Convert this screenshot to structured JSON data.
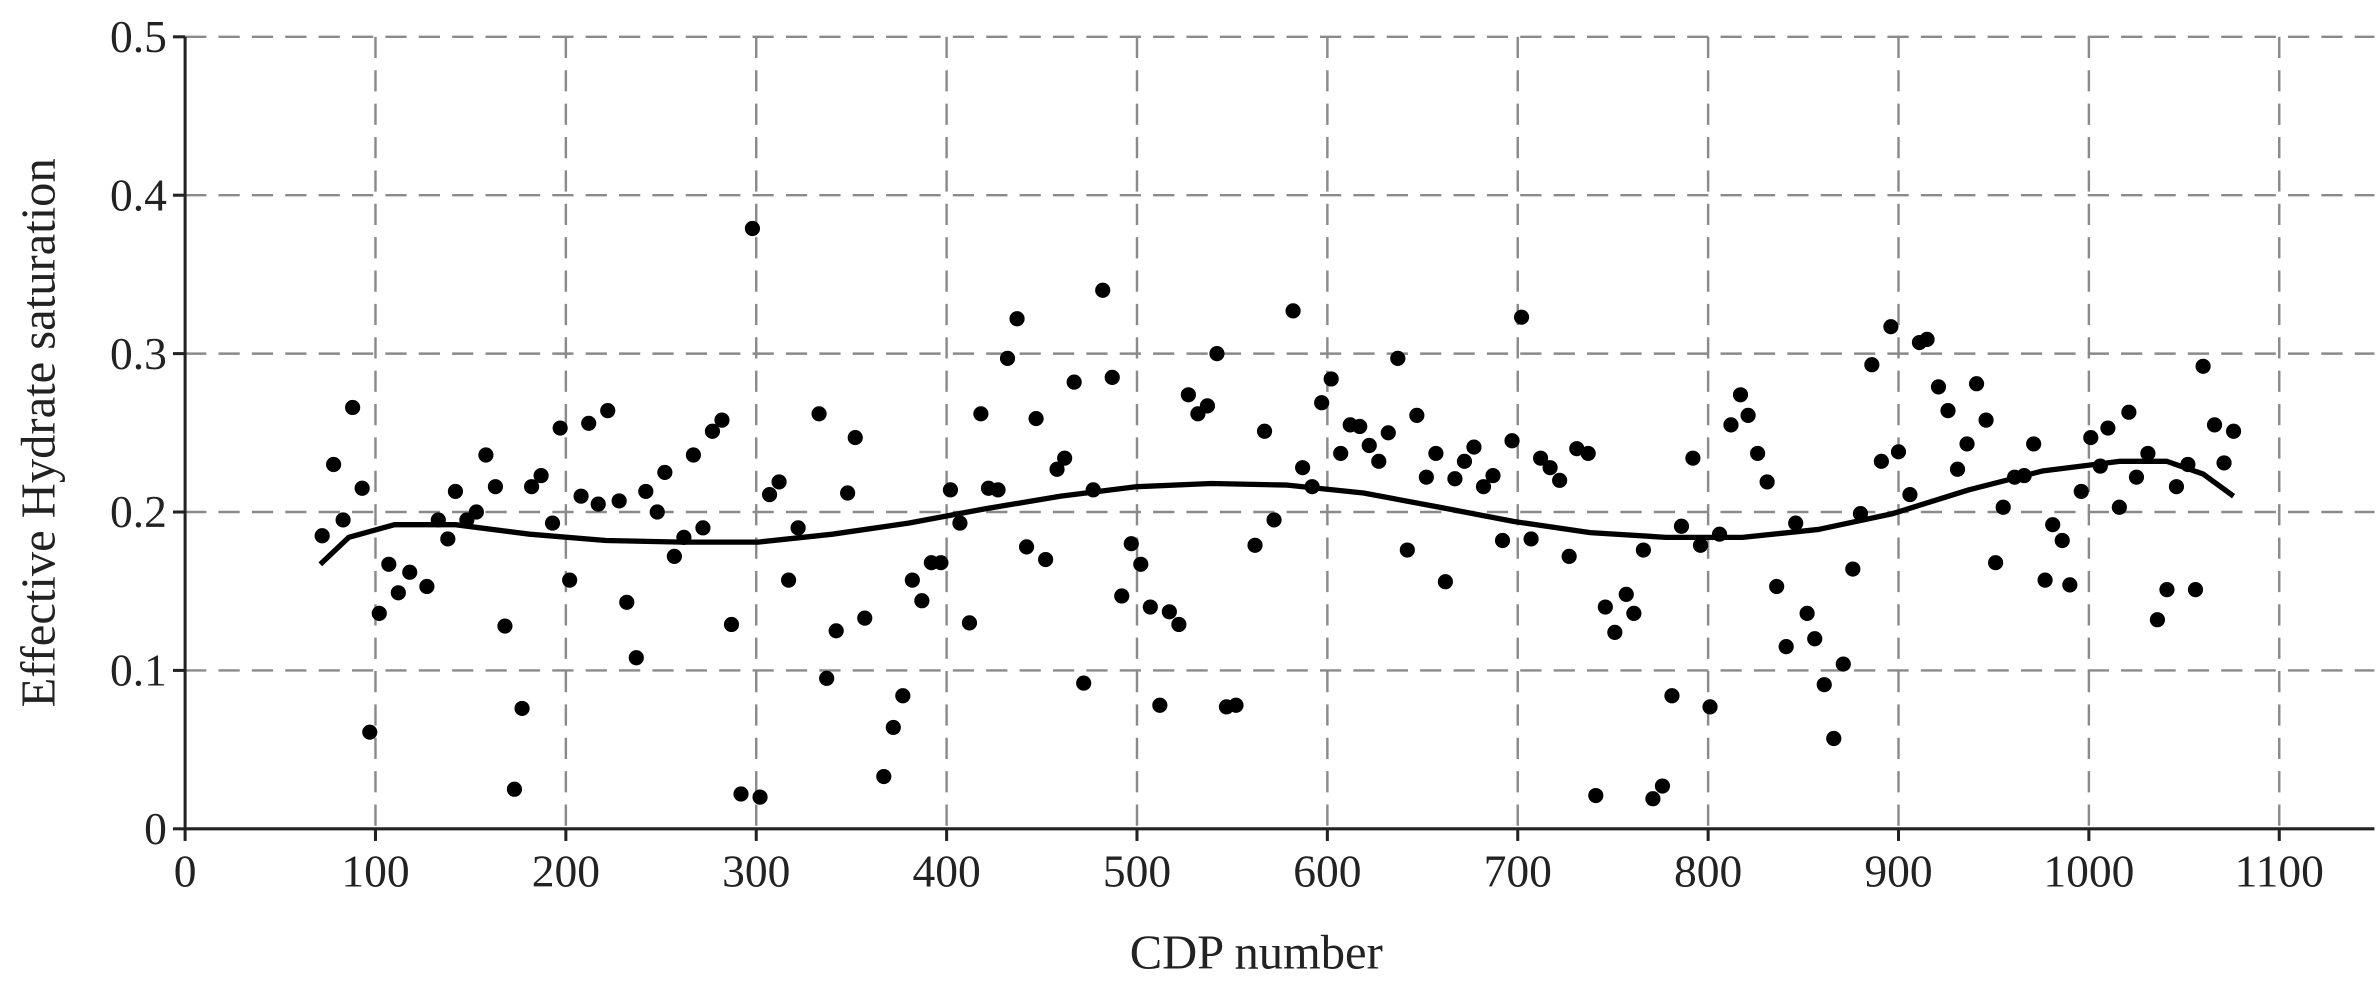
{
  "chart_data": {
    "type": "scatter",
    "xlabel": "CDP number",
    "ylabel": "Effective Hydrate saturation",
    "xlim": [
      0,
      1150
    ],
    "ylim": [
      0,
      0.5
    ],
    "xticks": [
      0,
      100,
      200,
      300,
      400,
      500,
      600,
      700,
      800,
      900,
      1000,
      1100
    ],
    "yticks": [
      0,
      0.1,
      0.2,
      0.3,
      0.4,
      0.5
    ],
    "grid": true,
    "series": [
      {
        "color": "#000000",
        "x": [
          72,
          78,
          83,
          88,
          93,
          97,
          102,
          107,
          112,
          118,
          127,
          133,
          138,
          142,
          148,
          153,
          158,
          163,
          168,
          173,
          177,
          182,
          187,
          193,
          197,
          202,
          208,
          212,
          217,
          222,
          228,
          232,
          237,
          242,
          248,
          252,
          257,
          262,
          267,
          272,
          277,
          282,
          287,
          292,
          298,
          302,
          307,
          312,
          317,
          322,
          333,
          337,
          342,
          348,
          352,
          357,
          367,
          372,
          377,
          382,
          387,
          392,
          397,
          402,
          407,
          412,
          418,
          422,
          427,
          432,
          437,
          442,
          447,
          452,
          458,
          462,
          467,
          472,
          477,
          482,
          487,
          492,
          497,
          502,
          507,
          512,
          517,
          522,
          527,
          532,
          537,
          542,
          547,
          552,
          562,
          567,
          572,
          582,
          587,
          592,
          597,
          602,
          607,
          612,
          617,
          622,
          627,
          632,
          637,
          642,
          647,
          652,
          657,
          662,
          667,
          672,
          677,
          682,
          687,
          692,
          697,
          702,
          707,
          712,
          717,
          722,
          727,
          731,
          737,
          741,
          746,
          751,
          757,
          761,
          766,
          771,
          776,
          781,
          786,
          792,
          796,
          801,
          806,
          812,
          817,
          821,
          826,
          831,
          836,
          841,
          846,
          852,
          856,
          861,
          866,
          871,
          876,
          880,
          886,
          891,
          896,
          900,
          906,
          911,
          915,
          921,
          926,
          931,
          936,
          941,
          946,
          951,
          955,
          961,
          966,
          971,
          977,
          981,
          986,
          990,
          996,
          1001,
          1006,
          1010,
          1016,
          1021,
          1025,
          1031,
          1036,
          1041,
          1046,
          1052,
          1056,
          1060,
          1066,
          1071,
          1076
        ],
        "y": [
          0.185,
          0.23,
          0.195,
          0.266,
          0.215,
          0.061,
          0.136,
          0.167,
          0.149,
          0.162,
          0.153,
          0.195,
          0.183,
          0.213,
          0.195,
          0.2,
          0.236,
          0.216,
          0.128,
          0.025,
          0.076,
          0.216,
          0.223,
          0.193,
          0.253,
          0.157,
          0.21,
          0.256,
          0.205,
          0.264,
          0.207,
          0.143,
          0.108,
          0.213,
          0.2,
          0.225,
          0.172,
          0.184,
          0.236,
          0.19,
          0.251,
          0.258,
          0.129,
          0.022,
          0.379,
          0.02,
          0.211,
          0.219,
          0.157,
          0.19,
          0.262,
          0.095,
          0.125,
          0.212,
          0.247,
          0.133,
          0.033,
          0.064,
          0.084,
          0.157,
          0.144,
          0.168,
          0.168,
          0.214,
          0.193,
          0.13,
          0.262,
          0.215,
          0.214,
          0.297,
          0.322,
          0.178,
          0.259,
          0.17,
          0.227,
          0.234,
          0.282,
          0.092,
          0.214,
          0.34,
          0.285,
          0.147,
          0.18,
          0.167,
          0.14,
          0.078,
          0.137,
          0.129,
          0.274,
          0.262,
          0.267,
          0.3,
          0.077,
          0.078,
          0.179,
          0.251,
          0.195,
          0.327,
          0.228,
          0.216,
          0.269,
          0.284,
          0.237,
          0.255,
          0.254,
          0.242,
          0.232,
          0.25,
          0.297,
          0.176,
          0.261,
          0.222,
          0.237,
          0.156,
          0.221,
          0.232,
          0.241,
          0.216,
          0.223,
          0.182,
          0.245,
          0.323,
          0.183,
          0.234,
          0.228,
          0.22,
          0.172,
          0.24,
          0.237,
          0.021,
          0.14,
          0.124,
          0.148,
          0.136,
          0.176,
          0.019,
          0.027,
          0.084,
          0.191,
          0.234,
          0.179,
          0.077,
          0.186,
          0.255,
          0.274,
          0.261,
          0.237,
          0.219,
          0.153,
          0.115,
          0.193,
          0.136,
          0.12,
          0.091,
          0.057,
          0.104,
          0.164,
          0.199,
          0.293,
          0.232,
          0.317,
          0.238,
          0.211,
          0.307,
          0.309,
          0.279,
          0.264,
          0.227,
          0.243,
          0.281,
          0.258,
          0.168,
          0.203,
          0.222,
          0.223,
          0.243,
          0.157,
          0.192,
          0.182,
          0.154,
          0.213,
          0.247,
          0.229,
          0.253,
          0.203,
          0.263,
          0.222,
          0.237,
          0.132,
          0.151,
          0.216,
          0.23,
          0.151,
          0.292,
          0.255,
          0.231,
          0.251
        ]
      },
      {
        "color": "#000000",
        "x": [
          71,
          86,
          110,
          142,
          181,
          221,
          261,
          301,
          340,
          380,
          420,
          460,
          500,
          539,
          579,
          619,
          659,
          698,
          738,
          778,
          818,
          858,
          897,
          937,
          976,
          1016,
          1041,
          1060,
          1076
        ],
        "y": [
          0.167,
          0.184,
          0.192,
          0.192,
          0.186,
          0.182,
          0.181,
          0.181,
          0.186,
          0.193,
          0.202,
          0.21,
          0.216,
          0.218,
          0.217,
          0.212,
          0.203,
          0.194,
          0.187,
          0.184,
          0.184,
          0.189,
          0.199,
          0.214,
          0.226,
          0.232,
          0.232,
          0.224,
          0.21
        ]
      }
    ]
  }
}
